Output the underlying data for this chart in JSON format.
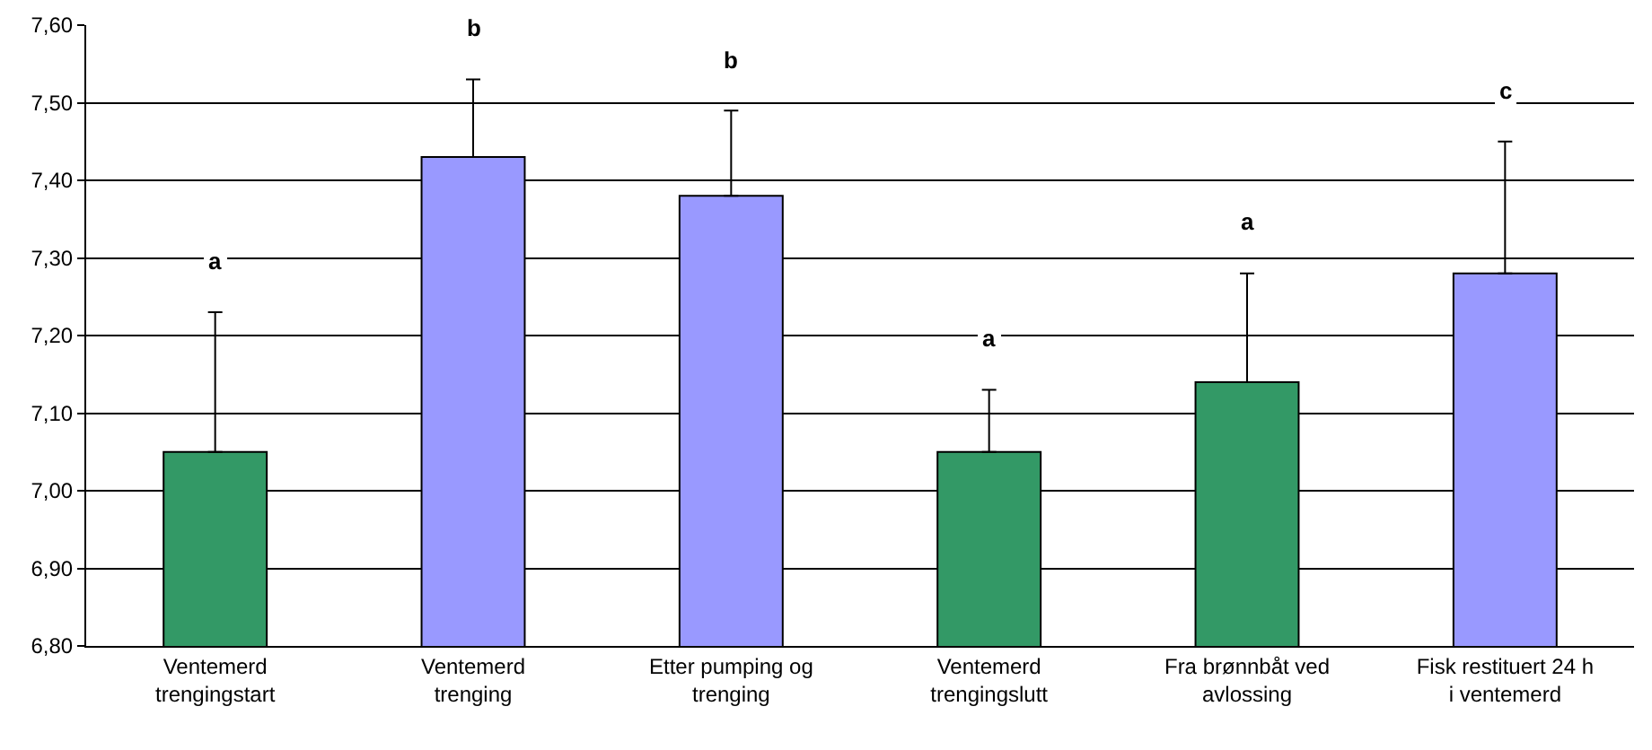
{
  "chart_data": {
    "type": "bar",
    "categories": [
      "Ventemerd\ntrengingstart",
      "Ventemerd\ntrenging",
      "Etter pumping og\ntrenging",
      "Ventemerd\ntrengingslutt",
      "Fra brønnbåt ved\navlossing",
      "Fisk restituert 24 h\ni ventemerd"
    ],
    "values": [
      7.05,
      7.43,
      7.38,
      7.05,
      7.14,
      7.28
    ],
    "colors": [
      "#339966",
      "#9999ff",
      "#9999ff",
      "#339966",
      "#339966",
      "#9999ff"
    ],
    "errors": [
      [
        7.05,
        7.23
      ],
      [
        7.43,
        7.53
      ],
      [
        7.38,
        7.49
      ],
      [
        7.05,
        7.13
      ],
      [
        7.14,
        7.28
      ],
      [
        7.28,
        7.45
      ]
    ],
    "ylim": [
      6.8,
      7.6
    ],
    "yticks": [
      {
        "value": 6.8,
        "label": "6,80"
      },
      {
        "value": 6.9,
        "label": "6,90"
      },
      {
        "value": 7.0,
        "label": "7,00"
      },
      {
        "value": 7.1,
        "label": "7,10"
      },
      {
        "value": 7.2,
        "label": "7,20"
      },
      {
        "value": 7.3,
        "label": "7,30"
      },
      {
        "value": 7.4,
        "label": "7,40"
      },
      {
        "value": 7.5,
        "label": "7,50"
      },
      {
        "value": 7.6,
        "label": "7,60"
      }
    ],
    "grid": "y",
    "annotations": [
      "a",
      "b",
      "b",
      "a",
      "a",
      "c"
    ]
  }
}
